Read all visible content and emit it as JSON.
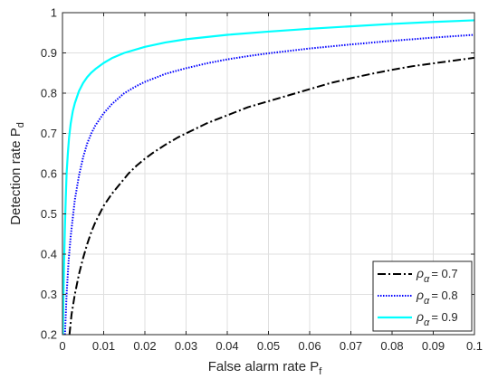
{
  "chart_data": {
    "type": "line",
    "title": "",
    "xlabel": "False alarm rate P",
    "xlabel_sub": "f",
    "ylabel": "Detection rate P",
    "ylabel_sub": "d",
    "xlim": [
      0,
      0.1
    ],
    "ylim": [
      0.2,
      1.0
    ],
    "x_ticks": [
      0,
      0.01,
      0.02,
      0.03,
      0.04,
      0.05,
      0.06,
      0.07,
      0.08,
      0.09,
      0.1
    ],
    "x_tick_labels": [
      "0",
      "0.01",
      "0.02",
      "0.03",
      "0.04",
      "0.05",
      "0.06",
      "0.07",
      "0.08",
      "0.09",
      "0.1"
    ],
    "y_ticks": [
      0.2,
      0.3,
      0.4,
      0.5,
      0.6,
      0.7,
      0.8,
      0.9,
      1.0
    ],
    "y_tick_labels": [
      "0.2",
      "0.3",
      "0.4",
      "0.5",
      "0.6",
      "0.7",
      "0.8",
      "0.9",
      "1"
    ],
    "grid": true,
    "legend_position": "bottom-right",
    "series": [
      {
        "name": "= 0.7",
        "legend_symbol": "ρ",
        "legend_subscript": "α",
        "color": "#000000",
        "style": "dash-dot",
        "x": [
          0.0017,
          0.0022,
          0.003,
          0.004,
          0.005,
          0.006,
          0.007,
          0.008,
          0.009,
          0.01,
          0.012,
          0.014,
          0.016,
          0.018,
          0.02,
          0.022,
          0.025,
          0.028,
          0.03,
          0.035,
          0.04,
          0.045,
          0.05,
          0.055,
          0.06,
          0.065,
          0.07,
          0.075,
          0.08,
          0.085,
          0.09,
          0.095,
          0.1
        ],
        "y": [
          0.2,
          0.25,
          0.3,
          0.35,
          0.39,
          0.425,
          0.455,
          0.48,
          0.5,
          0.52,
          0.55,
          0.575,
          0.6,
          0.62,
          0.637,
          0.652,
          0.672,
          0.69,
          0.7,
          0.725,
          0.745,
          0.765,
          0.78,
          0.795,
          0.81,
          0.825,
          0.837,
          0.848,
          0.858,
          0.867,
          0.874,
          0.881,
          0.888
        ]
      },
      {
        "name": "= 0.8",
        "legend_symbol": "ρ",
        "legend_subscript": "α",
        "color": "#0000ff",
        "style": "dotted",
        "x": [
          0.0006,
          0.001,
          0.0015,
          0.002,
          0.003,
          0.004,
          0.005,
          0.006,
          0.007,
          0.008,
          0.01,
          0.012,
          0.015,
          0.018,
          0.02,
          0.025,
          0.03,
          0.035,
          0.04,
          0.045,
          0.05,
          0.06,
          0.07,
          0.08,
          0.09,
          0.1
        ],
        "y": [
          0.2,
          0.3,
          0.385,
          0.445,
          0.535,
          0.595,
          0.64,
          0.675,
          0.7,
          0.72,
          0.75,
          0.773,
          0.8,
          0.818,
          0.828,
          0.848,
          0.862,
          0.874,
          0.884,
          0.892,
          0.899,
          0.911,
          0.921,
          0.93,
          0.938,
          0.945
        ]
      },
      {
        "name": "= 0.9",
        "legend_symbol": "ρ",
        "legend_subscript": "α",
        "color": "#00ffff",
        "style": "solid",
        "x": [
          0.0001,
          0.0002,
          0.0004,
          0.0006,
          0.0008,
          0.001,
          0.0013,
          0.0016,
          0.002,
          0.0025,
          0.003,
          0.004,
          0.005,
          0.006,
          0.007,
          0.008,
          0.01,
          0.012,
          0.015,
          0.02,
          0.025,
          0.03,
          0.04,
          0.05,
          0.06,
          0.07,
          0.08,
          0.09,
          0.1
        ],
        "y": [
          0.2,
          0.27,
          0.38,
          0.47,
          0.54,
          0.6,
          0.65,
          0.69,
          0.725,
          0.755,
          0.775,
          0.805,
          0.825,
          0.84,
          0.851,
          0.86,
          0.875,
          0.887,
          0.9,
          0.915,
          0.926,
          0.934,
          0.945,
          0.953,
          0.96,
          0.966,
          0.972,
          0.977,
          0.981
        ]
      }
    ]
  }
}
